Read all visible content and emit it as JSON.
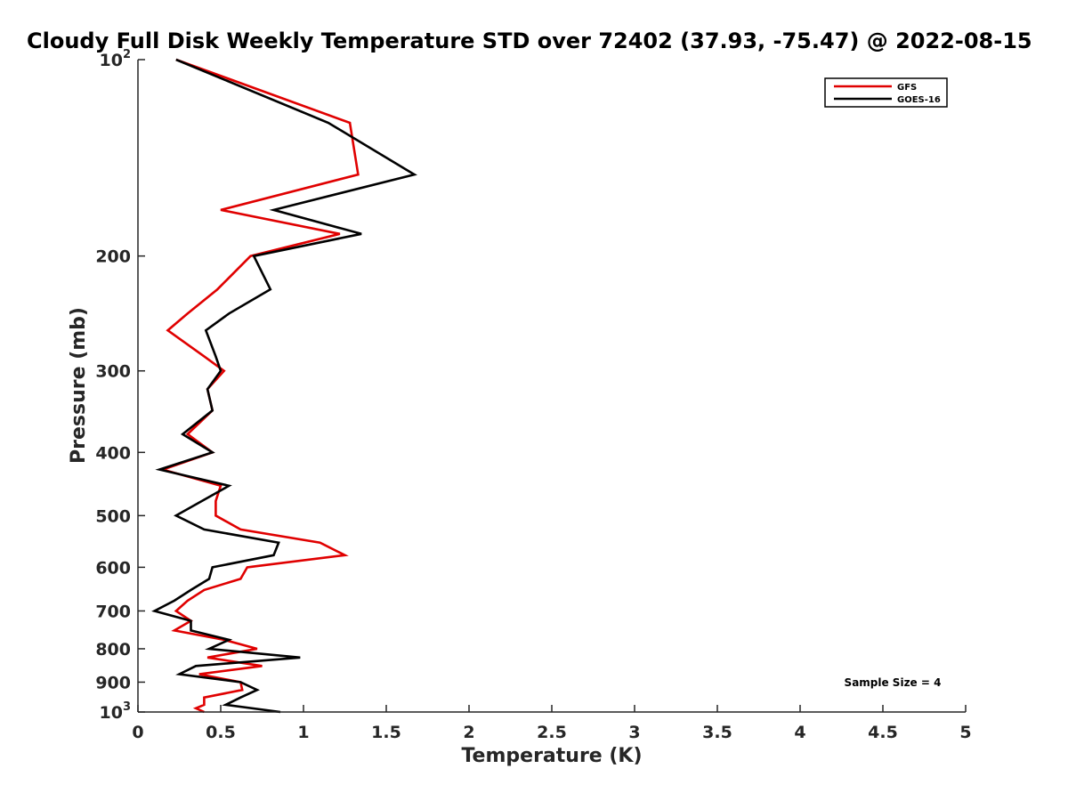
{
  "chart_data": {
    "type": "line",
    "title": "Cloudy Full Disk Weekly Temperature STD over 72402 (37.93, -75.47) @ 2022-08-15",
    "xlabel": "Temperature (K)",
    "ylabel": "Pressure (mb)",
    "xlim": [
      0,
      5
    ],
    "ylim": [
      100,
      1000
    ],
    "y_scale": "log",
    "y_reversed": true,
    "x_ticks": [
      0,
      0.5,
      1,
      1.5,
      2,
      2.5,
      3,
      3.5,
      4,
      4.5,
      5
    ],
    "x_tick_labels": [
      "0",
      "0.5",
      "1",
      "1.5",
      "2",
      "2.5",
      "3",
      "3.5",
      "4",
      "4.5",
      "5"
    ],
    "y_ticks": [
      100,
      200,
      300,
      400,
      500,
      600,
      700,
      800,
      900,
      1000
    ],
    "y_tick_labels": [
      {
        "base": "10",
        "exp": "2"
      },
      {
        "base": "200",
        "exp": ""
      },
      {
        "base": "300",
        "exp": ""
      },
      {
        "base": "400",
        "exp": ""
      },
      {
        "base": "500",
        "exp": ""
      },
      {
        "base": "600",
        "exp": ""
      },
      {
        "base": "700",
        "exp": ""
      },
      {
        "base": "800",
        "exp": ""
      },
      {
        "base": "900",
        "exp": ""
      },
      {
        "base": "10",
        "exp": "3"
      }
    ],
    "grid": false,
    "legend_position": "top-right",
    "annotation": "Sample Size = 4",
    "series": [
      {
        "name": "GFS",
        "color": "#e00000",
        "points": [
          [
            0.23,
            100
          ],
          [
            1.28,
            125
          ],
          [
            1.33,
            150
          ],
          [
            0.5,
            170
          ],
          [
            1.22,
            185
          ],
          [
            0.68,
            200
          ],
          [
            0.48,
            225
          ],
          [
            0.3,
            245
          ],
          [
            0.18,
            260
          ],
          [
            0.4,
            285
          ],
          [
            0.52,
            300
          ],
          [
            0.42,
            320
          ],
          [
            0.45,
            345
          ],
          [
            0.3,
            375
          ],
          [
            0.45,
            400
          ],
          [
            0.15,
            425
          ],
          [
            0.5,
            450
          ],
          [
            0.47,
            475
          ],
          [
            0.47,
            500
          ],
          [
            0.62,
            525
          ],
          [
            1.1,
            550
          ],
          [
            1.25,
            575
          ],
          [
            0.66,
            600
          ],
          [
            0.62,
            625
          ],
          [
            0.4,
            650
          ],
          [
            0.3,
            675
          ],
          [
            0.23,
            700
          ],
          [
            0.32,
            725
          ],
          [
            0.22,
            750
          ],
          [
            0.52,
            775
          ],
          [
            0.72,
            800
          ],
          [
            0.42,
            825
          ],
          [
            0.75,
            850
          ],
          [
            0.37,
            875
          ],
          [
            0.62,
            900
          ],
          [
            0.63,
            925
          ],
          [
            0.4,
            950
          ],
          [
            0.4,
            975
          ],
          [
            0.35,
            987
          ],
          [
            0.4,
            1000
          ]
        ]
      },
      {
        "name": "GOES-16",
        "color": "#000000",
        "points": [
          [
            0.23,
            100
          ],
          [
            1.15,
            125
          ],
          [
            1.67,
            150
          ],
          [
            0.82,
            170
          ],
          [
            1.35,
            185
          ],
          [
            0.7,
            200
          ],
          [
            0.8,
            225
          ],
          [
            0.55,
            245
          ],
          [
            0.41,
            260
          ],
          [
            0.47,
            285
          ],
          [
            0.5,
            300
          ],
          [
            0.42,
            320
          ],
          [
            0.45,
            345
          ],
          [
            0.27,
            375
          ],
          [
            0.45,
            400
          ],
          [
            0.13,
            425
          ],
          [
            0.55,
            450
          ],
          [
            0.23,
            500
          ],
          [
            0.4,
            525
          ],
          [
            0.85,
            550
          ],
          [
            0.82,
            575
          ],
          [
            0.45,
            600
          ],
          [
            0.43,
            625
          ],
          [
            0.32,
            650
          ],
          [
            0.22,
            675
          ],
          [
            0.1,
            700
          ],
          [
            0.32,
            725
          ],
          [
            0.32,
            750
          ],
          [
            0.55,
            775
          ],
          [
            0.43,
            800
          ],
          [
            0.98,
            825
          ],
          [
            0.35,
            850
          ],
          [
            0.25,
            875
          ],
          [
            0.62,
            900
          ],
          [
            0.72,
            925
          ],
          [
            0.62,
            950
          ],
          [
            0.53,
            975
          ],
          [
            0.86,
            1000
          ]
        ]
      }
    ]
  }
}
